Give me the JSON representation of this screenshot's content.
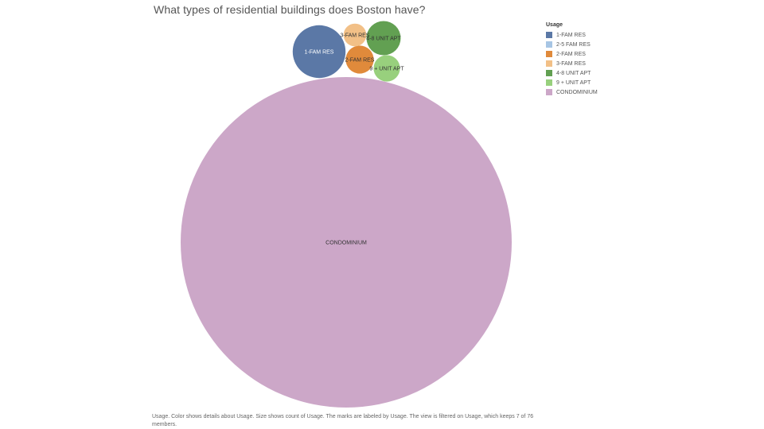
{
  "chart_data": {
    "type": "bubble",
    "title": "What types of residential buildings does Boston have?",
    "legend": {
      "title": "Usage",
      "placement": "right",
      "items": [
        {
          "label": "1-FAM RES",
          "color": "#5b78a6"
        },
        {
          "label": "2-5 FAM RES",
          "color": "#a7c5e4"
        },
        {
          "label": "2-FAM RES",
          "color": "#e08a3b"
        },
        {
          "label": "3-FAM RES",
          "color": "#f2c087"
        },
        {
          "label": "4-8 UNIT APT",
          "color": "#62a052"
        },
        {
          "label": "9 + UNIT APT",
          "color": "#98d07d"
        },
        {
          "label": "CONDOMINIUM",
          "color": "#cca7c8"
        }
      ]
    },
    "series": [
      {
        "category": "CONDOMINIUM",
        "relative_count": 1.0,
        "color": "#cca7c8"
      },
      {
        "category": "1-FAM RES",
        "relative_count": 0.0255,
        "color": "#5b78a6"
      },
      {
        "category": "4-8 UNIT APT",
        "relative_count": 0.0107,
        "color": "#62a052"
      },
      {
        "category": "2-FAM RES",
        "relative_count": 0.0072,
        "color": "#e08a3b"
      },
      {
        "category": "9 + UNIT APT",
        "relative_count": 0.0064,
        "color": "#98d07d"
      },
      {
        "category": "3-FAM RES",
        "relative_count": 0.0047,
        "color": "#f2c087"
      },
      {
        "category": "2-5 FAM RES",
        "relative_count": 0.0,
        "color": "#a7c5e4"
      }
    ],
    "caption": "Usage.  Color shows details about Usage.  Size shows count of Usage.  The marks are labeled by Usage. The view is filtered on Usage, which keeps 7 of 76 members."
  }
}
